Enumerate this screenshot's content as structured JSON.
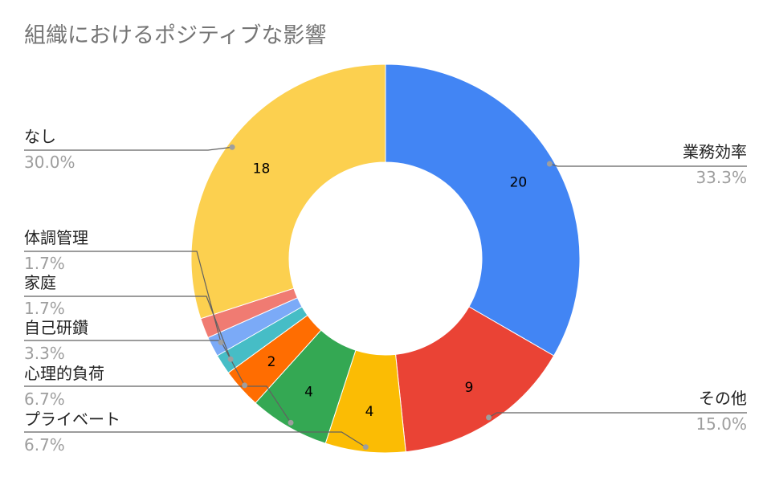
{
  "chart_data": {
    "type": "pie",
    "donut": true,
    "title": "組織におけるポジティブな影響",
    "legend": "callouts",
    "slices": [
      {
        "label": "業務効率",
        "value": 20,
        "percent": "33.3%",
        "color": "#4285F4",
        "value_label": "20",
        "side": "right"
      },
      {
        "label": "その他",
        "value": 9,
        "percent": "15.0%",
        "color": "#EA4335",
        "value_label": "9",
        "side": "right"
      },
      {
        "label": "プライベート",
        "value": 4,
        "percent": "6.7%",
        "color": "#FBBC04",
        "value_label": "4",
        "side": "left"
      },
      {
        "label": "心理的負荷",
        "value": 4,
        "percent": "6.7%",
        "color": "#34A853",
        "value_label": "4",
        "side": "left"
      },
      {
        "label": "自己研鑽",
        "value": 2,
        "percent": "3.3%",
        "color": "#FF6D01",
        "value_label": "2",
        "side": "left"
      },
      {
        "label": "家庭",
        "value": 1,
        "percent": "1.7%",
        "color": "#46BDC6",
        "value_label": "",
        "side": "left"
      },
      {
        "label": "体調管理",
        "value": 1,
        "percent": "1.7%",
        "color": "#7BAAF7",
        "value_label": "",
        "side": "left"
      },
      {
        "label": "",
        "value": 1,
        "percent": "",
        "color": "#F07B72",
        "value_label": "",
        "side": "none"
      },
      {
        "label": "なし",
        "value": 18,
        "percent": "30.0%",
        "color": "#FCD04F",
        "value_label": "18",
        "side": "left"
      }
    ]
  }
}
